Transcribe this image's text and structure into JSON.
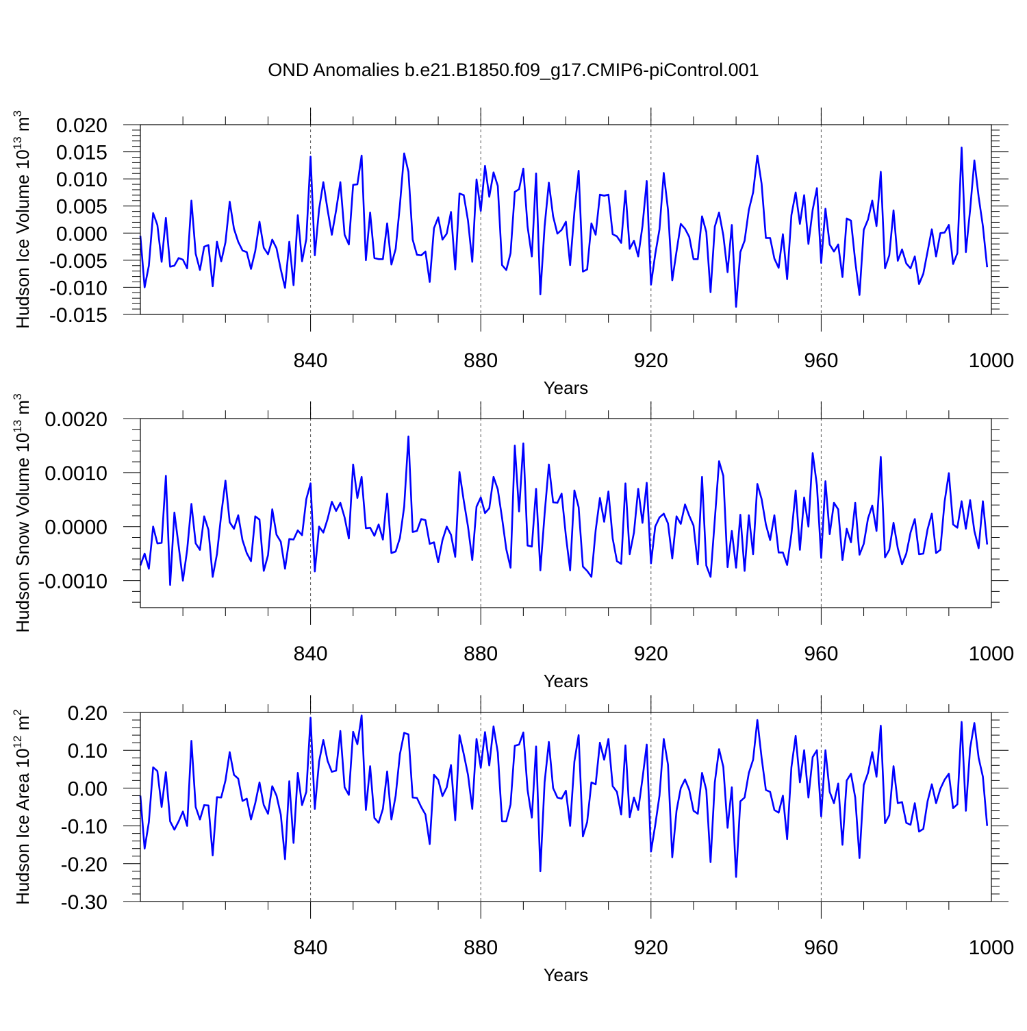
{
  "title": "OND Anomalies b.e21.B1850.f09_g17.CMIP6-piControl.001",
  "colors": {
    "line": "#0000ff",
    "axis": "#000000",
    "grid": "#555555"
  },
  "chart_data": [
    {
      "type": "line",
      "name": "ice-volume",
      "ylabel": {
        "main": "Hudson Ice Volume 10",
        "exp": "13",
        "unit": " m",
        "unit_exp": "3"
      },
      "xlabel": "Years",
      "xlim": [
        800,
        1000
      ],
      "ylim": [
        -0.015,
        0.02
      ],
      "yticks": [
        -0.015,
        -0.01,
        -0.005,
        0.0,
        0.005,
        0.01,
        0.015,
        0.02
      ],
      "ytick_labels": [
        "-0.015",
        "-0.010",
        "-0.005",
        "0.000",
        "0.005",
        "0.010",
        "0.015",
        "0.020"
      ],
      "xticks": [
        840,
        880,
        920,
        960,
        1000
      ],
      "xtick_labels": [
        "840",
        "880",
        "920",
        "960",
        "1000"
      ],
      "vlines": [
        840,
        880,
        920,
        960
      ],
      "x_start": 800,
      "values": [
        -0.0005,
        -0.01,
        -0.006,
        0.0037,
        0.0015,
        -0.0053,
        0.0028,
        -0.0062,
        -0.006,
        -0.0046,
        -0.0049,
        -0.0065,
        0.006,
        -0.0038,
        -0.0068,
        -0.0025,
        -0.0022,
        -0.0098,
        -0.0016,
        -0.0052,
        -0.0017,
        0.0058,
        0.0008,
        -0.0016,
        -0.0032,
        -0.0035,
        -0.0066,
        -0.0033,
        0.0021,
        -0.0027,
        -0.0039,
        -0.0012,
        -0.0028,
        -0.0067,
        -0.0101,
        -0.0016,
        -0.0096,
        0.0033,
        -0.0052,
        -0.0011,
        0.0141,
        -0.0041,
        0.0044,
        0.0094,
        0.0043,
        -0.0003,
        0.0042,
        0.0094,
        -0.0003,
        -0.0021,
        0.0089,
        0.009,
        0.0143,
        -0.005,
        0.0038,
        -0.0046,
        -0.0048,
        -0.0048,
        0.0018,
        -0.0058,
        -0.0029,
        0.0052,
        0.0147,
        0.0113,
        -0.0012,
        -0.004,
        -0.0041,
        -0.0034,
        -0.009,
        0.0009,
        0.0029,
        -0.0012,
        -0.0001,
        0.0039,
        -0.0067,
        0.0073,
        0.007,
        0.0023,
        -0.0053,
        0.0099,
        0.0041,
        0.0124,
        0.0067,
        0.0112,
        0.0087,
        -0.0059,
        -0.0068,
        -0.0037,
        0.0076,
        0.0081,
        0.0119,
        0.0012,
        -0.0043,
        0.011,
        -0.0113,
        0.0012,
        0.0093,
        0.0031,
        -0.0001,
        0.0006,
        0.0021,
        -0.0059,
        0.0039,
        0.0115,
        -0.0071,
        -0.0067,
        0.0018,
        -0.0003,
        0.0071,
        0.0069,
        0.0071,
        -0.0002,
        -0.0006,
        -0.0018,
        0.0078,
        -0.0029,
        -0.0014,
        -0.0043,
        0.0013,
        0.0096,
        -0.0095,
        -0.0039,
        0.0007,
        0.0111,
        0.0043,
        -0.0087,
        -0.0034,
        0.0017,
        0.0008,
        -0.0007,
        -0.0048,
        -0.0048,
        0.0031,
        0.0002,
        -0.0109,
        0.0012,
        0.0038,
        -0.0004,
        -0.0072,
        0.0015,
        -0.0136,
        -0.0035,
        -0.0014,
        0.0043,
        0.0075,
        0.0143,
        0.0091,
        -0.0009,
        -0.0009,
        -0.0047,
        -0.0064,
        -0.0002,
        -0.0085,
        0.0033,
        0.0075,
        0.0017,
        0.007,
        -0.002,
        0.0043,
        0.0083,
        -0.0055,
        0.0045,
        -0.0021,
        -0.0034,
        -0.0021,
        -0.0081,
        0.0027,
        0.0023,
        -0.0052,
        -0.0114,
        0.0006,
        0.0025,
        0.006,
        0.0013,
        0.0113,
        -0.0065,
        -0.0041,
        0.0042,
        -0.0051,
        -0.003,
        -0.0056,
        -0.0065,
        -0.0043,
        -0.0094,
        -0.0075,
        -0.0034,
        0.0007,
        -0.0043,
        0.0,
        0.0001,
        0.0015,
        -0.0057,
        -0.0037,
        0.0158,
        -0.0035,
        0.0043,
        0.0134,
        0.0067,
        0.0013,
        -0.0063
      ]
    },
    {
      "type": "line",
      "name": "snow-volume",
      "ylabel": {
        "main": "Hudson Snow Volume 10",
        "exp": "13",
        "unit": " m",
        "unit_exp": "3"
      },
      "xlabel": "Years",
      "xlim": [
        800,
        1000
      ],
      "ylim": [
        -0.0015,
        0.002
      ],
      "yticks": [
        -0.001,
        0.0,
        0.001,
        0.002
      ],
      "ytick_labels": [
        "-0.0010",
        "0.0000",
        "0.0010",
        "0.0020"
      ],
      "xticks": [
        840,
        880,
        920,
        960,
        1000
      ],
      "xtick_labels": [
        "840",
        "880",
        "920",
        "960",
        "1000"
      ],
      "vlines": [
        840,
        880,
        920,
        960
      ],
      "x_start": 800,
      "values": [
        -0.00072,
        -0.0005,
        -0.00078,
        0.0,
        -0.00031,
        -0.0003,
        0.00094,
        -0.00108,
        0.00026,
        -0.00036,
        -0.001,
        -0.00043,
        0.00042,
        -0.00031,
        -0.00043,
        0.00019,
        -6e-05,
        -0.00093,
        -0.00051,
        0.00022,
        0.00085,
        8e-05,
        -4e-05,
        0.00021,
        -0.00025,
        -0.00049,
        -0.00064,
        0.00019,
        0.00013,
        -0.00082,
        -0.00053,
        0.00032,
        -0.00015,
        -0.00028,
        -0.00078,
        -0.00023,
        -0.00024,
        -7e-05,
        -0.00016,
        0.00051,
        0.0008,
        -0.00083,
        0.0,
        -0.00011,
        0.00014,
        0.00046,
        0.00029,
        0.00044,
        0.00017,
        -0.00022,
        0.00115,
        0.00053,
        0.00092,
        -3e-05,
        -2e-05,
        -0.00017,
        4e-05,
        -0.00024,
        0.00061,
        -0.00049,
        -0.00046,
        -0.00021,
        0.00037,
        0.00167,
        -0.0001,
        -8e-05,
        0.00014,
        0.00012,
        -0.00032,
        -0.00029,
        -0.00066,
        -0.00025,
        0.0,
        -0.00015,
        -0.00056,
        0.00101,
        0.00048,
        0.0,
        -0.00062,
        0.00037,
        0.00054,
        0.00025,
        0.00034,
        0.00092,
        0.00069,
        0.00016,
        -0.00042,
        -0.00076,
        0.0015,
        0.00028,
        0.00154,
        -0.00035,
        -0.00037,
        0.0007,
        -0.00081,
        0.00023,
        0.00115,
        0.00045,
        0.00044,
        0.00061,
        -0.00017,
        -0.00081,
        0.00067,
        0.00036,
        -0.00074,
        -0.00082,
        -0.00093,
        -7e-05,
        0.00053,
        9e-05,
        0.00065,
        -0.00022,
        -0.00064,
        -0.00069,
        0.0008,
        -0.00051,
        -0.00011,
        0.0007,
        7e-05,
        0.00081,
        -0.00068,
        0.0,
        0.00017,
        0.00024,
        6e-05,
        -0.00059,
        0.00019,
        5e-05,
        0.00041,
        0.0002,
        2e-05,
        -0.0007,
        0.00092,
        -0.00072,
        -0.00093,
        0.00013,
        0.00121,
        0.00094,
        -0.00075,
        -8e-05,
        -0.00076,
        0.00022,
        -0.00082,
        0.00021,
        -0.00051,
        0.00079,
        0.00051,
        4e-05,
        -0.00025,
        0.00021,
        -0.00048,
        -0.00048,
        -0.00071,
        -0.00014,
        0.00067,
        -0.00043,
        0.00054,
        0.0,
        0.00136,
        0.00076,
        -0.00058,
        0.00084,
        -0.00014,
        0.00044,
        0.00032,
        -0.00062,
        -4e-05,
        -0.00029,
        0.00044,
        -0.00052,
        -0.00032,
        0.00015,
        0.00039,
        -8e-05,
        0.00129,
        -0.00057,
        -0.00043,
        7e-05,
        -0.0004,
        -0.0007,
        -0.0005,
        -0.00011,
        0.00014,
        -0.00051,
        -0.0005,
        -5e-05,
        0.00024,
        -0.00049,
        -0.00043,
        0.00046,
        0.00099,
        4e-05,
        -2e-05,
        0.00047,
        -4e-05,
        0.00049,
        -8e-05,
        -0.0004,
        0.00047,
        -0.00033
      ]
    },
    {
      "type": "line",
      "name": "ice-area",
      "ylabel": {
        "main": "Hudson Ice Area 10",
        "exp": "12",
        "unit": " m",
        "unit_exp": "2"
      },
      "xlabel": "Years",
      "xlim": [
        800,
        1000
      ],
      "ylim": [
        -0.3,
        0.2
      ],
      "yticks": [
        -0.3,
        -0.2,
        -0.1,
        0.0,
        0.1,
        0.2
      ],
      "ytick_labels": [
        "-0.30",
        "-0.20",
        "-0.10",
        "0.00",
        "0.10",
        "0.20"
      ],
      "xticks": [
        840,
        880,
        920,
        960,
        1000
      ],
      "xtick_labels": [
        "840",
        "880",
        "920",
        "960",
        "1000"
      ],
      "vlines": [
        840,
        880,
        920,
        960
      ],
      "x_start": 800,
      "values": [
        -0.02,
        -0.16,
        -0.09,
        0.055,
        0.045,
        -0.05,
        0.042,
        -0.088,
        -0.11,
        -0.088,
        -0.062,
        -0.1,
        0.125,
        -0.05,
        -0.083,
        -0.045,
        -0.046,
        -0.178,
        -0.024,
        -0.025,
        0.02,
        0.095,
        0.035,
        0.025,
        -0.034,
        -0.028,
        -0.083,
        -0.04,
        0.015,
        -0.045,
        -0.068,
        0.005,
        -0.02,
        -0.07,
        -0.188,
        0.018,
        -0.145,
        0.04,
        -0.045,
        -0.01,
        0.186,
        -0.055,
        0.07,
        0.127,
        0.072,
        0.043,
        0.046,
        0.151,
        0.002,
        -0.018,
        0.149,
        0.116,
        0.192,
        -0.058,
        0.058,
        -0.079,
        -0.092,
        -0.055,
        0.044,
        -0.083,
        -0.02,
        0.09,
        0.146,
        0.142,
        -0.025,
        -0.026,
        -0.05,
        -0.07,
        -0.148,
        0.035,
        0.022,
        -0.021,
        0.002,
        0.061,
        -0.085,
        0.14,
        0.09,
        0.035,
        -0.055,
        0.13,
        0.054,
        0.148,
        0.06,
        0.163,
        0.094,
        -0.088,
        -0.088,
        -0.043,
        0.112,
        0.115,
        0.147,
        -0.005,
        -0.078,
        0.11,
        -0.22,
        0.015,
        0.122,
        0.0,
        -0.025,
        -0.028,
        -0.007,
        -0.1,
        0.07,
        0.14,
        -0.128,
        -0.09,
        0.015,
        0.01,
        0.12,
        0.075,
        0.13,
        0.005,
        -0.01,
        -0.07,
        0.113,
        -0.077,
        -0.025,
        -0.058,
        0.025,
        0.115,
        -0.168,
        -0.098,
        -0.02,
        0.13,
        0.062,
        -0.183,
        -0.06,
        0.0,
        0.023,
        -0.005,
        -0.06,
        -0.068,
        0.04,
        -0.005,
        -0.196,
        0.015,
        0.103,
        0.056,
        -0.105,
        0.002,
        -0.235,
        -0.035,
        -0.025,
        0.04,
        0.075,
        0.18,
        0.08,
        -0.005,
        -0.01,
        -0.058,
        -0.065,
        -0.02,
        -0.135,
        0.055,
        0.138,
        0.015,
        0.1,
        -0.025,
        0.082,
        0.1,
        -0.075,
        0.1,
        -0.01,
        -0.04,
        0.012,
        -0.15,
        0.02,
        0.038,
        -0.025,
        -0.185,
        0.008,
        0.04,
        0.095,
        0.03,
        0.165,
        -0.093,
        -0.072,
        0.058,
        -0.04,
        -0.037,
        -0.092,
        -0.097,
        -0.04,
        -0.115,
        -0.108,
        -0.035,
        0.01,
        -0.04,
        -0.002,
        0.022,
        0.038,
        -0.053,
        -0.043,
        0.175,
        -0.06,
        0.105,
        0.172,
        0.08,
        0.03,
        -0.1
      ]
    }
  ]
}
